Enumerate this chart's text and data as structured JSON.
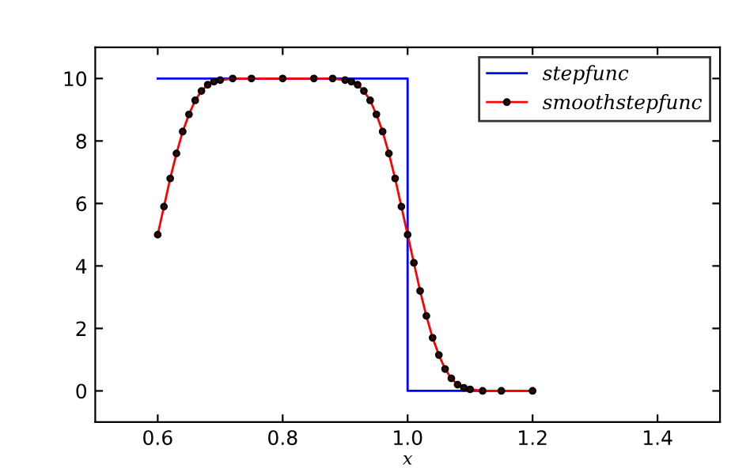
{
  "chart_data": {
    "type": "line",
    "xlabel": "x",
    "xlim": [
      0.5,
      1.5
    ],
    "xticks": [
      {
        "value": 0.6,
        "label": "0.6"
      },
      {
        "value": 0.8,
        "label": "0.8"
      },
      {
        "value": 1.0,
        "label": "1.0"
      },
      {
        "value": 1.2,
        "label": "1.2"
      },
      {
        "value": 1.4,
        "label": "1.4"
      }
    ],
    "ylim": [
      -1,
      11
    ],
    "yticks": [
      0,
      2,
      4,
      6,
      8,
      10
    ],
    "grid": false,
    "legend": "top right",
    "series": [
      {
        "name": "stepfunc",
        "color": "#0000ff",
        "marker": "none",
        "x": [
          0.6,
          1.0,
          1.0,
          1.2
        ],
        "values": [
          10,
          10,
          0,
          0
        ]
      },
      {
        "name": "smoothstepfunc",
        "color": "#ff0000",
        "marker": "circle",
        "x": [
          0.6,
          0.61,
          0.62,
          0.63,
          0.64,
          0.65,
          0.66,
          0.67,
          0.68,
          0.69,
          0.7,
          0.72,
          0.75,
          0.8,
          0.85,
          0.88,
          0.9,
          0.91,
          0.92,
          0.93,
          0.94,
          0.95,
          0.96,
          0.97,
          0.98,
          0.99,
          1.0,
          1.01,
          1.02,
          1.03,
          1.04,
          1.05,
          1.06,
          1.07,
          1.08,
          1.09,
          1.1,
          1.12,
          1.15,
          1.2
        ],
        "values": [
          5.0,
          5.9,
          6.8,
          7.6,
          8.3,
          8.85,
          9.3,
          9.6,
          9.8,
          9.9,
          9.95,
          10,
          10,
          10,
          10,
          10,
          9.95,
          9.9,
          9.8,
          9.6,
          9.3,
          8.85,
          8.3,
          7.6,
          6.8,
          5.9,
          5.0,
          4.1,
          3.2,
          2.4,
          1.7,
          1.15,
          0.7,
          0.4,
          0.2,
          0.1,
          0.05,
          0,
          0,
          0
        ]
      }
    ]
  }
}
